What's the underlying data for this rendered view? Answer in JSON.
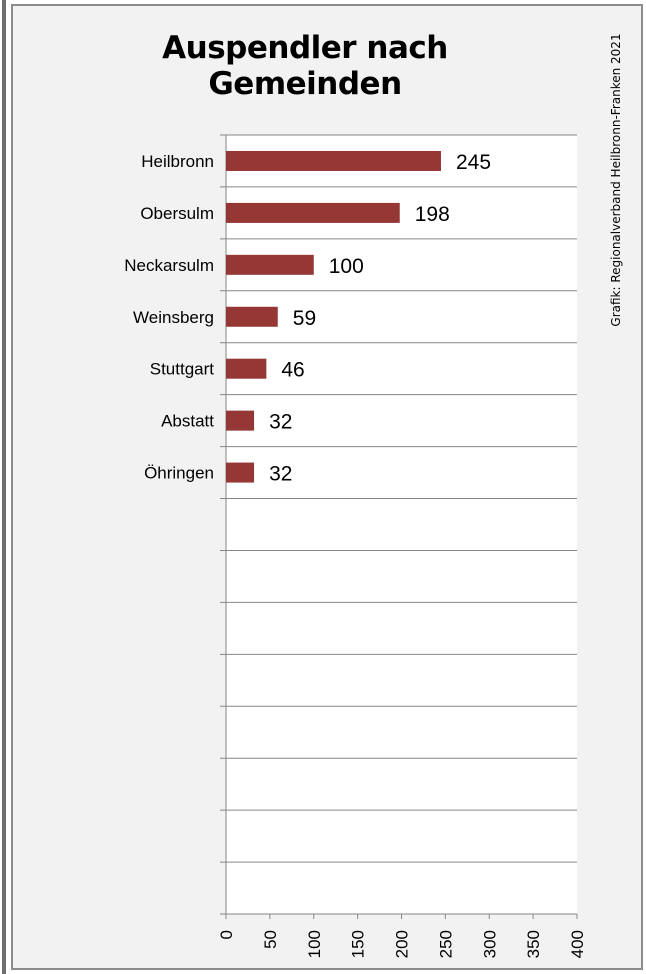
{
  "chart_data": {
    "type": "bar",
    "orientation": "horizontal",
    "title": "Auspendler nach Gemeinden",
    "credit": "Grafik: Regionalverband Heilbronn-Franken 2021",
    "categories": [
      "Heilbronn",
      "Obersulm",
      "Neckarsulm",
      "Weinsberg",
      "Stuttgart",
      "Abstatt",
      "Öhringen"
    ],
    "values": [
      245,
      198,
      100,
      59,
      46,
      32,
      32
    ],
    "value_labels": [
      "245",
      "198",
      "100",
      "59",
      "46",
      "32",
      "32"
    ],
    "xlim": [
      0,
      400
    ],
    "x_ticks": [
      "0",
      "50",
      "100",
      "150",
      "200",
      "250",
      "300",
      "350",
      "400"
    ],
    "category_slots": 15,
    "grid": true,
    "bar_color": "#953735",
    "background_color": "#f2f2f2",
    "plot_background": "#ffffff"
  }
}
